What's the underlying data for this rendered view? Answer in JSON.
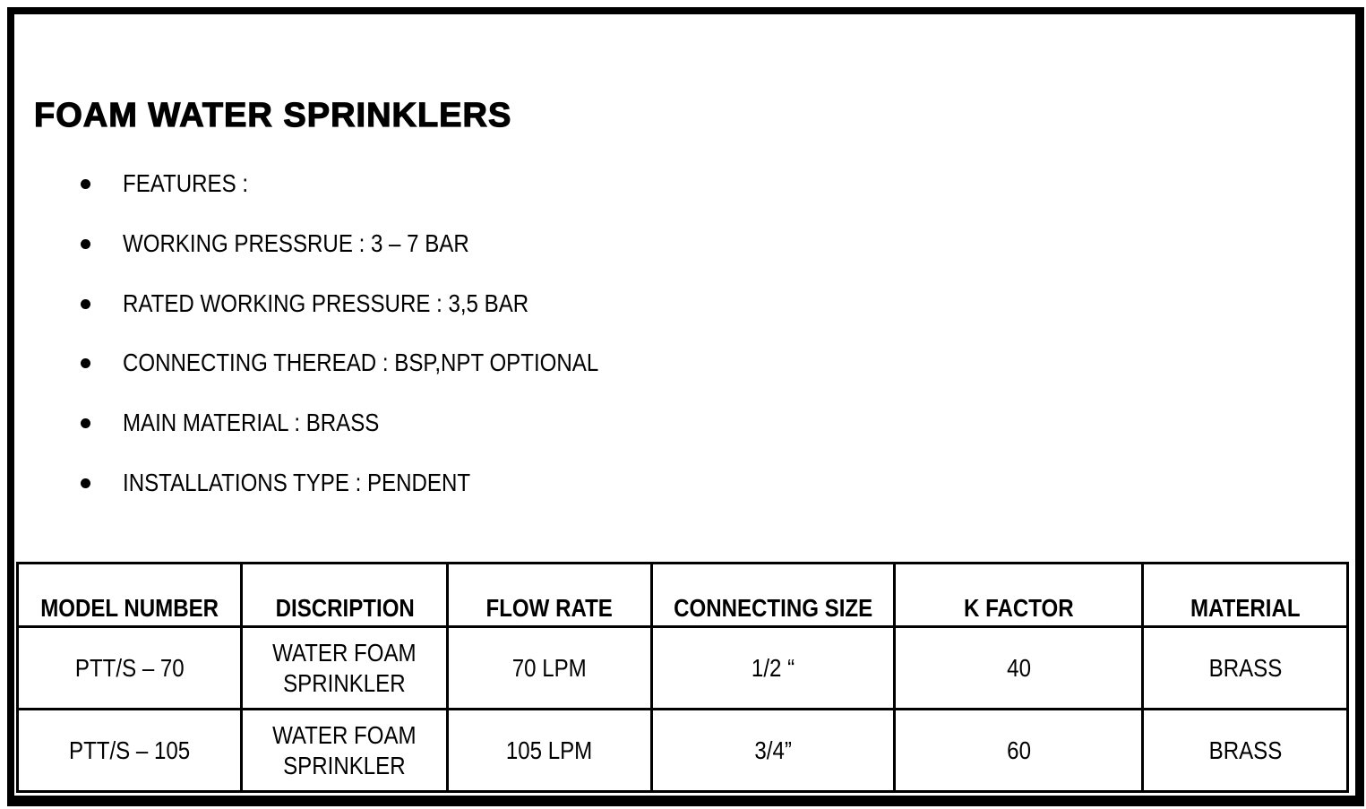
{
  "title": "FOAM WATER SPRINKLERS",
  "features": [
    "FEATURES :",
    "WORKING PRESSRUE : 3 – 7 BAR",
    "RATED WORKING PRESSURE : 3,5 BAR",
    "CONNECTING THEREAD : BSP,NPT OPTIONAL",
    "MAIN MATERIAL : BRASS",
    "INSTALLATIONS TYPE : PENDENT"
  ],
  "table": {
    "headers": [
      "MODEL NUMBER",
      "DISCRIPTION",
      "FLOW RATE",
      "CONNECTING SIZE",
      "K FACTOR",
      "MATERIAL"
    ],
    "rows": [
      {
        "model": "PTT/S – 70",
        "desc1": "WATER FOAM",
        "desc2": "SPRINKLER",
        "flow": "70 LPM",
        "size": "1/2 “",
        "k": "40",
        "material": "BRASS"
      },
      {
        "model": "PTT/S – 105",
        "desc1": "WATER FOAM",
        "desc2": "SPRINKLER",
        "flow": "105 LPM",
        "size": "3/4”",
        "k": "60",
        "material": "BRASS"
      }
    ]
  }
}
